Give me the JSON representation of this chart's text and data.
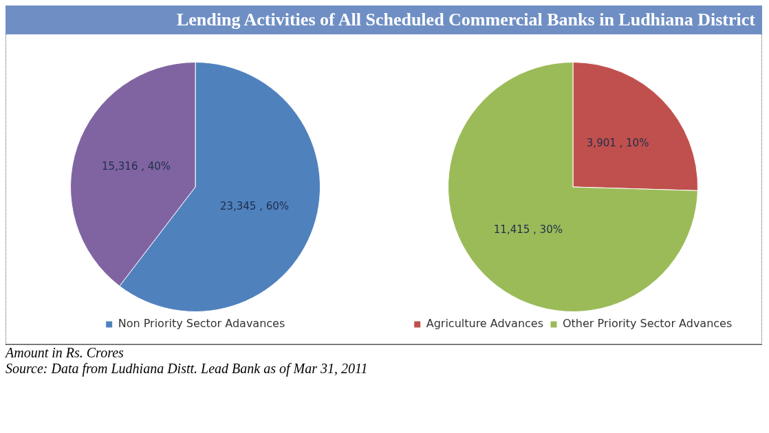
{
  "chart_data": [
    {
      "type": "pie",
      "title": "Lending Activities of All Scheduled Commercial Banks in Ludhiana District",
      "categories": [
        "Non Priority Sector Adavances",
        null
      ],
      "values": [
        23345,
        15316
      ],
      "colors": [
        "#4f81bd",
        "#8064a2"
      ],
      "value_labels": [
        "23,345 , 60%",
        "15,316 , 40%"
      ],
      "legend": "bottom",
      "annotations": [
        "Amount in Rs. Crores",
        "Source: Data from Ludhiana Distt. Lead Bank as of Mar 31, 2011"
      ]
    },
    {
      "type": "pie",
      "categories": [
        "Agriculture Advances",
        "Other Priority Sector Advances"
      ],
      "values": [
        3901,
        11415
      ],
      "colors": [
        "#c0504d",
        "#9bbb59"
      ],
      "value_labels": [
        "3,901 , 10%",
        "11,415 , 30%"
      ],
      "legend": "bottom"
    }
  ]
}
